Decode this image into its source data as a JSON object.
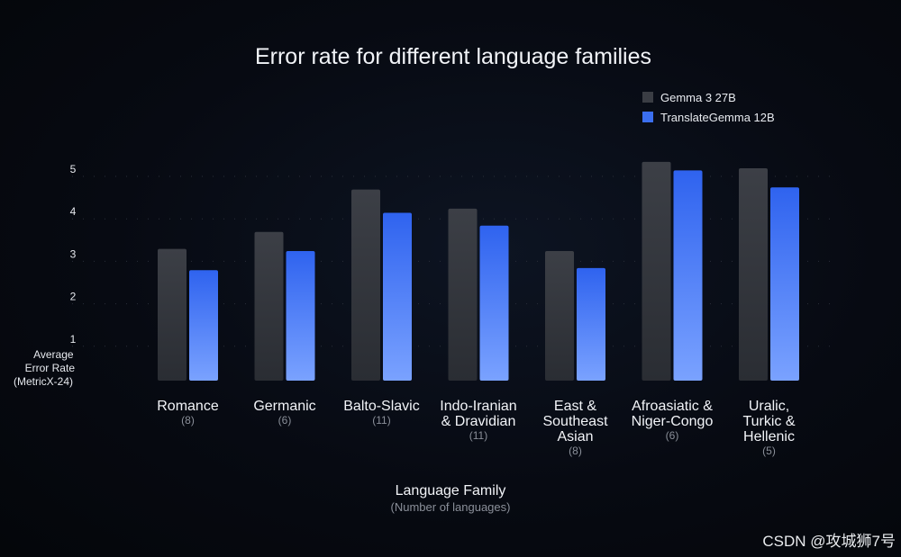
{
  "chart_data": {
    "type": "bar",
    "title": "Error rate for different language families",
    "ylabel_lines": [
      "Average",
      "Error Rate",
      "(MetricX-24)"
    ],
    "xlabel": "Language Family",
    "xlabel_sub": "(Number of languages)",
    "ylim": [
      0,
      5
    ],
    "yticks": [
      1,
      2,
      3,
      4,
      5
    ],
    "grid": true,
    "legend_position": "top-right",
    "categories": [
      {
        "lines": [
          "Romance"
        ],
        "count": "(8)"
      },
      {
        "lines": [
          "Germanic"
        ],
        "count": "(6)"
      },
      {
        "lines": [
          "Balto-Slavic"
        ],
        "count": "(11)"
      },
      {
        "lines": [
          "Indo-Iranian",
          "& Dravidian"
        ],
        "count": "(11)"
      },
      {
        "lines": [
          "East &",
          "Southeast",
          "Asian"
        ],
        "count": "(8)"
      },
      {
        "lines": [
          "Afroasiatic &",
          "Niger-Congo"
        ],
        "count": "(6)"
      },
      {
        "lines": [
          "Uralic,",
          "Turkic &",
          "Hellenic"
        ],
        "count": "(5)"
      }
    ],
    "series": [
      {
        "name": "Gemma 3 27B",
        "color": "#3a3d44",
        "values": [
          3.1,
          3.5,
          4.5,
          4.05,
          3.05,
          5.15,
          5.0
        ]
      },
      {
        "name": "TranslateGemma 12B",
        "color": "#3b6ff0",
        "values": [
          2.6,
          3.05,
          3.95,
          3.65,
          2.65,
          4.95,
          4.55
        ]
      }
    ]
  },
  "watermark": "CSDN @攻城狮7号"
}
